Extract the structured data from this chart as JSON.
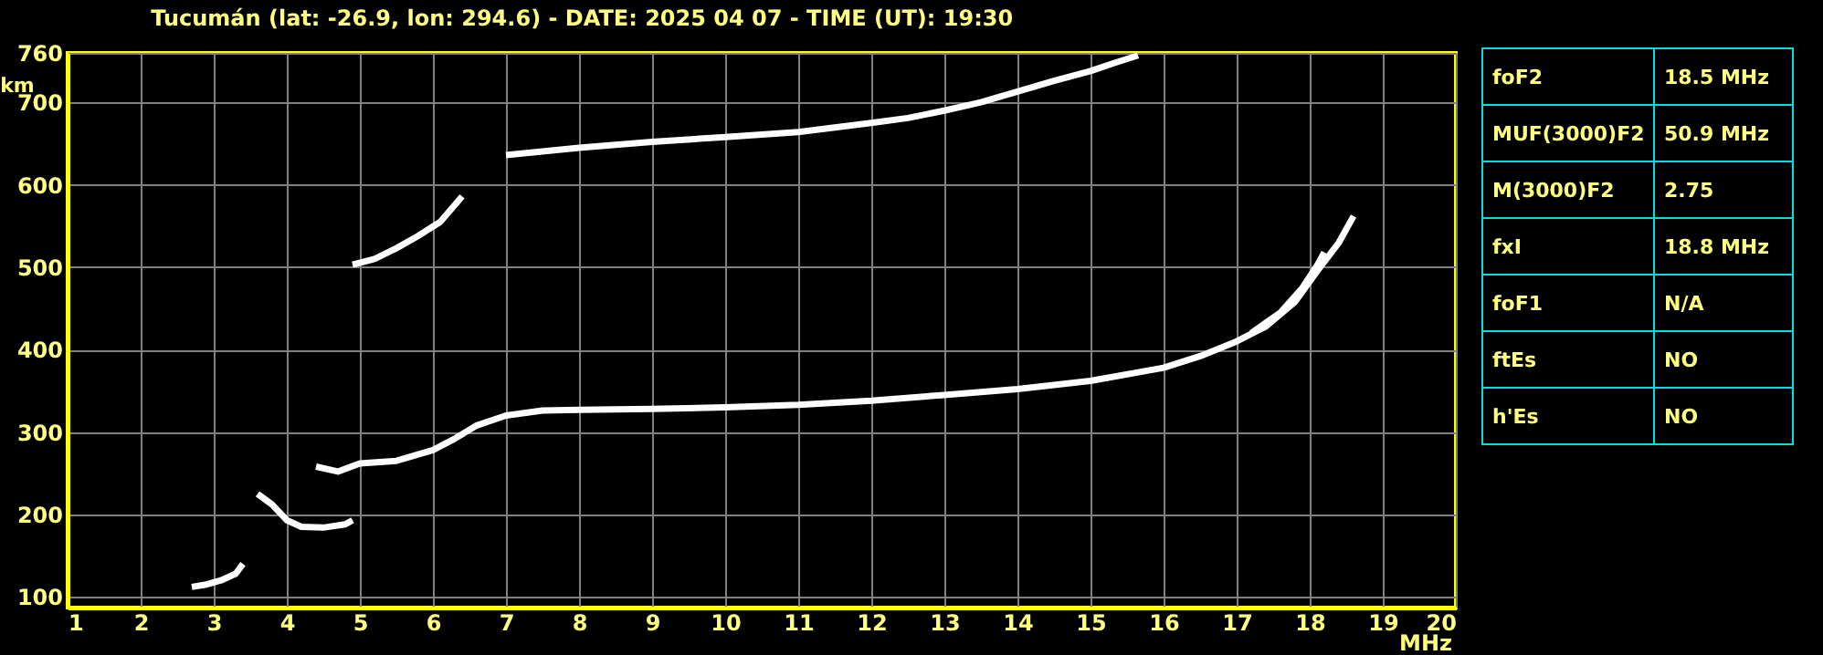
{
  "chart_data": [
    {
      "type": "line",
      "title": "Tucumán (lat: -26.9, lon: 294.6) - DATE: 2025 04 07 - TIME (UT): 19:30",
      "xlabel": "MHz",
      "ylabel": "km",
      "xlim": [
        1,
        20
      ],
      "ylim": [
        87,
        760
      ],
      "xticks": [
        1,
        2,
        3,
        4,
        5,
        6,
        7,
        8,
        9,
        10,
        11,
        12,
        13,
        14,
        15,
        16,
        17,
        18,
        19,
        20
      ],
      "yticks": [
        100,
        200,
        300,
        400,
        500,
        600,
        700,
        760
      ],
      "grid": true,
      "marker": "none",
      "line_style": "solid",
      "series": [
        {
          "color": "#ffffff",
          "x": [
            2.7,
            2.9,
            3.1,
            3.3,
            3.4
          ],
          "values": [
            112,
            115,
            120,
            128,
            140
          ]
        },
        {
          "color": "#ffffff",
          "x": [
            3.6,
            3.8,
            4.0,
            4.2,
            4.5,
            4.8,
            4.9
          ],
          "values": [
            225,
            212,
            193,
            185,
            184,
            188,
            193
          ]
        },
        {
          "color": "#ffffff",
          "x": [
            4.4,
            4.7,
            5.0,
            5.5,
            6.0,
            6.3,
            6.6,
            7.0,
            7.5,
            8,
            9,
            10,
            11,
            12,
            13,
            14,
            15,
            16,
            16.5,
            17,
            17.4,
            17.8,
            18.1,
            18.4,
            18.6
          ],
          "values": [
            258,
            252,
            262,
            265,
            278,
            292,
            308,
            320,
            326,
            327,
            328,
            330,
            333,
            338,
            345,
            352,
            362,
            378,
            392,
            410,
            428,
            458,
            495,
            530,
            562
          ]
        },
        {
          "color": "#ffffff",
          "x": [
            17.2,
            17.6,
            17.9,
            18.1,
            18.2
          ],
          "values": [
            420,
            445,
            475,
            502,
            518
          ]
        },
        {
          "color": "#ffffff",
          "x": [
            4.9,
            5.2,
            5.5,
            5.8,
            6.1,
            6.4
          ],
          "values": [
            503,
            510,
            523,
            538,
            555,
            586
          ]
        },
        {
          "color": "#ffffff",
          "x": [
            7.0,
            8,
            9,
            10,
            11,
            12,
            12.5,
            13,
            13.5,
            14,
            14.5,
            15,
            15.3,
            15.65
          ],
          "values": [
            636,
            645,
            652,
            658,
            664,
            675,
            681,
            690,
            700,
            713,
            726,
            738,
            747,
            757
          ]
        }
      ]
    },
    {
      "type": "other",
      "annotations": [
        "foF2",
        "18.5 MHz",
        "MUF(3000)F2",
        "50.9 MHz",
        "M(3000)F2",
        "2.75",
        "fxI",
        "18.8 MHz",
        "foF1",
        "N/A",
        "ftEs",
        "NO",
        "h'Es",
        "NO"
      ]
    }
  ]
}
